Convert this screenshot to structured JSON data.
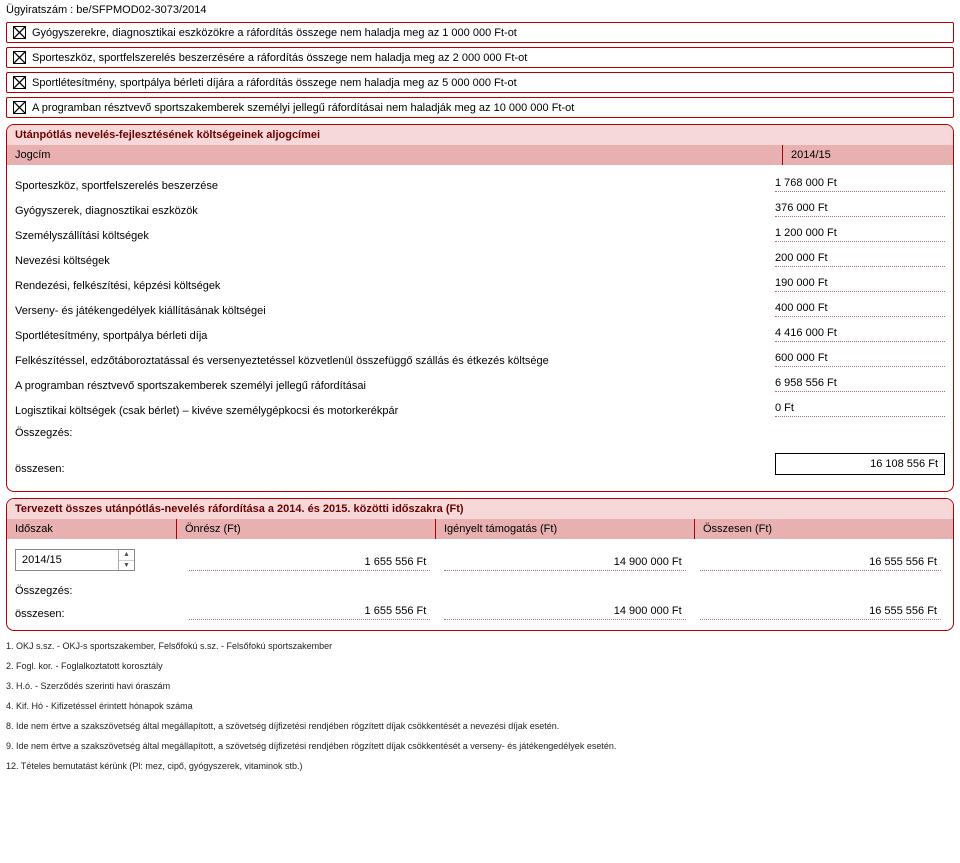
{
  "doc_id": "Ügyiratszám : be/SFPMOD02-3073/2014",
  "checkboxes": [
    {
      "label": "Gyógyszerekre, diagnosztikai eszközökre a ráfordítás összege nem haladja meg az 1 000 000 Ft-ot",
      "checked": true
    },
    {
      "label": "Sporteszköz, sportfelszerelés beszerzésére a ráfordítás összege nem haladja meg az 2 000 000 Ft-ot",
      "checked": true
    },
    {
      "label": "Sportlétesítmény, sportpálya bérleti díjára a ráfordítás összege nem haladja meg az 5 000 000 Ft-ot",
      "checked": true
    },
    {
      "label": "A programban résztvevő sportszakemberek személyi jellegű ráfordításai nem haladják meg az 10 000 000 Ft-ot",
      "checked": true
    }
  ],
  "costs": {
    "title": "Utánpótlás nevelés-fejlesztésének költségeinek aljogcímei",
    "header_left": "Jogcím",
    "header_right": "2014/15",
    "items": [
      {
        "label": "Sporteszköz, sportfelszerelés beszerzése",
        "value": "1 768 000 Ft"
      },
      {
        "label": "Gyógyszerek, diagnosztikai eszközök",
        "value": "376 000 Ft"
      },
      {
        "label": "Személyszállítási költségek",
        "value": "1 200 000 Ft"
      },
      {
        "label": "Nevezési költségek",
        "value": "200 000 Ft"
      },
      {
        "label": "Rendezési, felkészítési, képzési költségek",
        "value": "190 000 Ft"
      },
      {
        "label": "Verseny- és játékengedélyek kiállításának költségei",
        "value": "400 000 Ft"
      },
      {
        "label": "Sportlétesítmény, sportpálya bérleti díja",
        "value": "4 416 000 Ft"
      },
      {
        "label": "Felkészítéssel, edzőtáboroztatással és versenyeztetéssel közvetlenül összefüggő szállás és étkezés költsége",
        "value": "600 000 Ft"
      },
      {
        "label": "A programban résztvevő sportszakemberek személyi jellegű ráfordításai",
        "value": "6 958 556 Ft"
      },
      {
        "label": "Logisztikai költségek (csak bérlet) – kivéve személygépkocsi és motorkerékpár",
        "value": "0 Ft"
      }
    ],
    "sum_header": "Összegzés:",
    "sum_label": "összesen:",
    "sum_value": "16 108 556 Ft"
  },
  "planned": {
    "title": "Tervezett összes utánpótlás-nevelés ráfordítása a 2014. és 2015. közötti időszakra (Ft)",
    "headers": {
      "c1": "Időszak",
      "c2": "Önrész (Ft)",
      "c3": "Igényelt támogatás (Ft)",
      "c4": "Összesen (Ft)"
    },
    "row": {
      "period": "2014/15",
      "own": "1 655 556 Ft",
      "req": "14 900 000 Ft",
      "total": "16 555 556 Ft"
    },
    "sum_header": "Összegzés:",
    "sum_label": "összesen:",
    "sum": {
      "own": "1 655 556 Ft",
      "req": "14 900 000 Ft",
      "total": "16 555 556 Ft"
    }
  },
  "footnotes": [
    "1. OKJ s.sz. - OKJ-s sportszakember, Felsőfokú s.sz. - Felsőfokú sportszakember",
    "2. Fogl. kor. - Foglalkoztatott korosztály",
    "3. H.ó. - Szerződés szerinti havi óraszám",
    "4. Kif. Hó - Kifizetéssel érintett hónapok száma",
    "8. Ide nem értve a szakszövetség által megállapított, a szövetség díjfizetési rendjében rögzített díjak csökkentését a nevezési díjak esetén.",
    "9. Ide nem értve a szakszövetség által megállapított, a szövetség díjfizetési rendjében rögzített díjak csökkentését a verseny- és játékengedélyek esetén.",
    "12. Tételes bemutatást kérünk (Pl: mez, cipő, gyógyszerek, vitaminok stb.)"
  ]
}
